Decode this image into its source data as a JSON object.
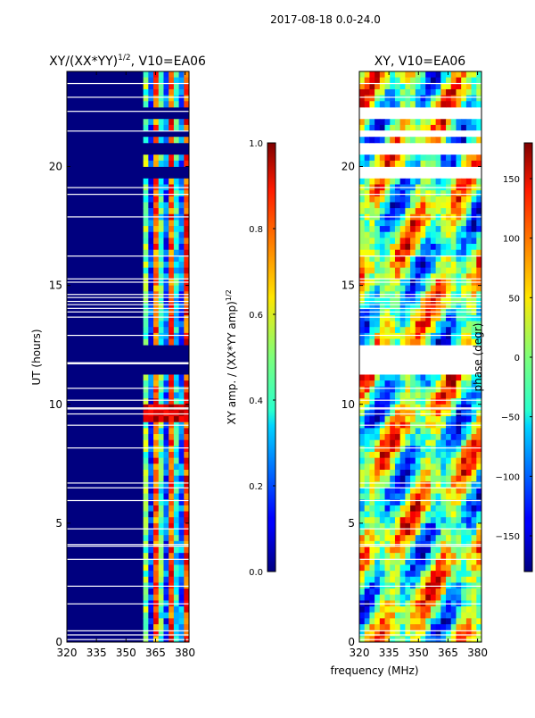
{
  "figure_title": "2017-08-18 0.0-24.0",
  "colors": {
    "background": "#ffffff",
    "gap": "#ffffff",
    "deep_blue": "#00007f"
  },
  "chart_data": [
    {
      "type": "heatmap",
      "title_main": "XY/(XX*YY)",
      "title_sup": "1/2",
      "title_tail": ", V10=EA06",
      "xlabel": "",
      "ylabel": "UT (hours)",
      "xlim": [
        320,
        382
      ],
      "ylim": [
        0,
        24
      ],
      "xticks": [
        320,
        335,
        350,
        365,
        380
      ],
      "yticks": [
        0,
        5,
        10,
        15,
        20
      ],
      "value_range": [
        0.0,
        1.0
      ],
      "active_band_mhz": [
        360,
        382
      ],
      "colorbar": {
        "label_main": "XY amp. / (XX*YY amp)",
        "label_sup": "1/2",
        "ticks": [
          "0.0",
          "0.2",
          "0.4",
          "0.6",
          "0.8",
          "1.0"
        ],
        "tick_values": [
          0.0,
          0.2,
          0.4,
          0.6,
          0.8,
          1.0
        ],
        "range": [
          0.0,
          1.0
        ]
      }
    },
    {
      "type": "heatmap",
      "title_main": "XY, V10=EA06",
      "title_sup": "",
      "title_tail": "",
      "xlabel": "frequency (MHz)",
      "ylabel": "",
      "xlim": [
        320,
        382
      ],
      "ylim": [
        0,
        24
      ],
      "xticks": [
        320,
        335,
        350,
        365,
        380
      ],
      "yticks": [
        0,
        5,
        10,
        15,
        20
      ],
      "value_range": [
        -180,
        180
      ],
      "colorbar": {
        "label_main": "phase (degr)",
        "label_sup": "",
        "ticks": [
          "−150",
          "−100",
          "−50",
          "0",
          "50",
          "100",
          "150"
        ],
        "tick_values": [
          -150,
          -100,
          -50,
          0,
          50,
          100,
          150
        ],
        "range": [
          -180,
          180
        ]
      }
    }
  ],
  "flagged_time_ranges_hours": [
    [
      11.3,
      12.6
    ],
    [
      19.4,
      20.1
    ],
    [
      21.3,
      21.6
    ],
    [
      22.0,
      22.6
    ],
    [
      20.6,
      20.9
    ],
    [
      6.5,
      6.6
    ]
  ]
}
